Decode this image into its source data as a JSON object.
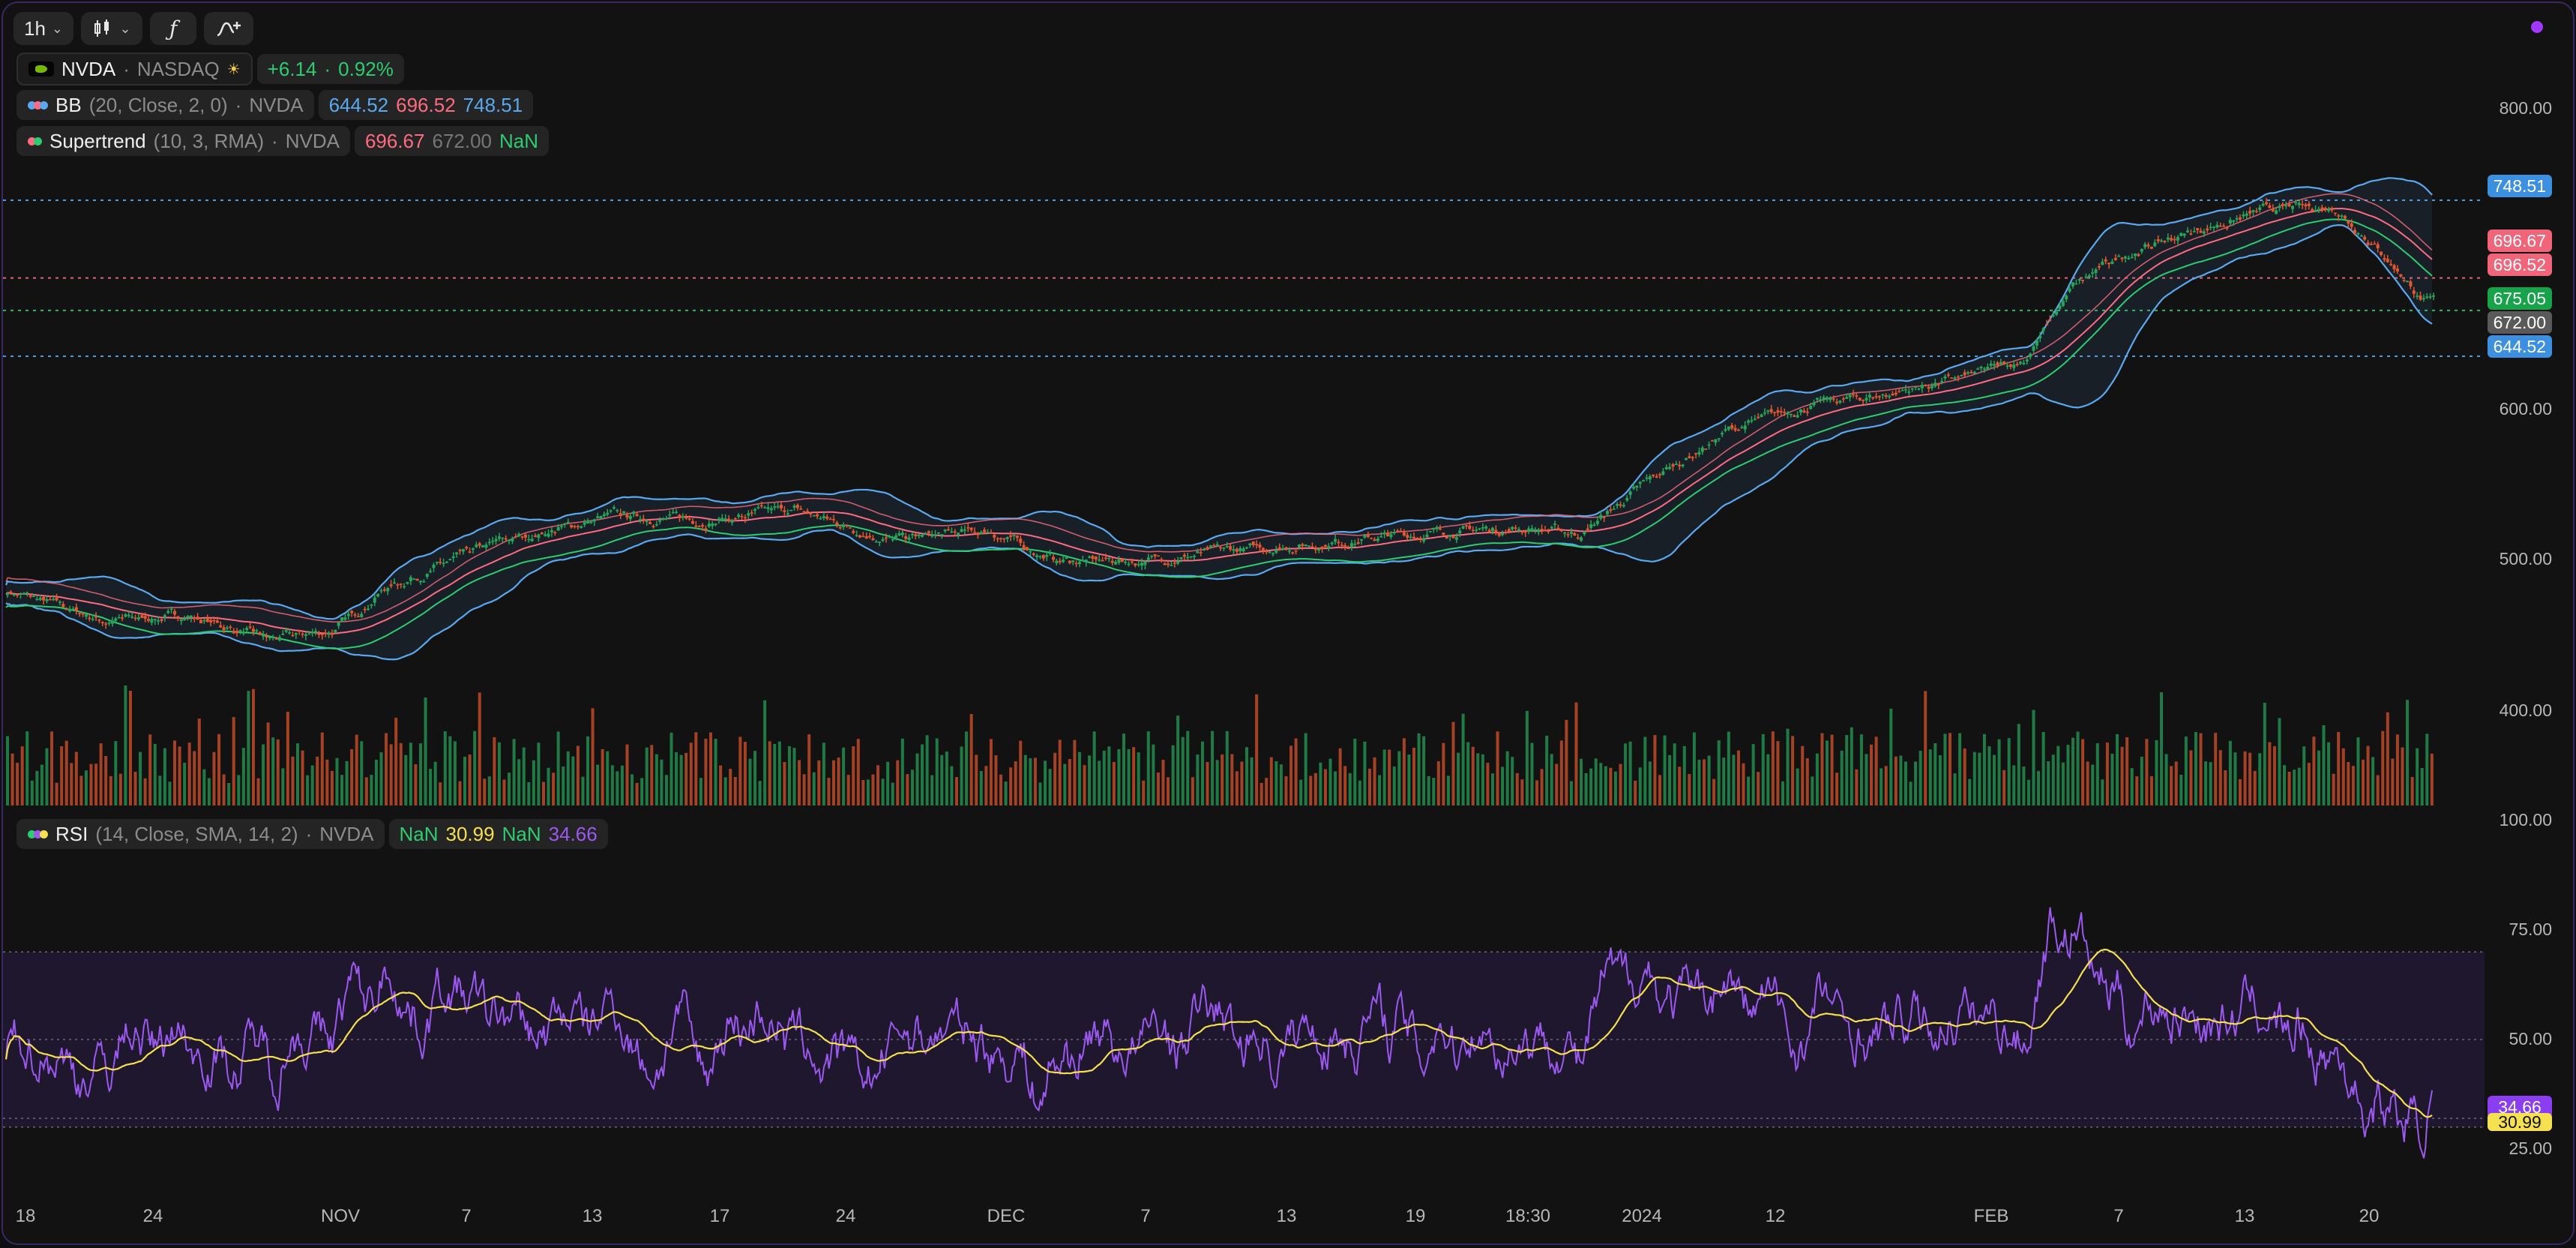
{
  "toolbar": {
    "interval": "1h",
    "buttons": [
      "chart-type",
      "indicators",
      "drawing"
    ]
  },
  "symbol": {
    "name": "NVDA",
    "exchange": "NASDAQ",
    "change": "+6.14",
    "change_pct": "0.92%"
  },
  "bb": {
    "name": "BB",
    "params": "(20, Close, 2, 0)",
    "symbol": "NVDA",
    "lower": "644.52",
    "basis": "696.52",
    "upper": "748.51"
  },
  "supertrend": {
    "name": "Supertrend",
    "params": "(10, 3, RMA)",
    "symbol": "NVDA",
    "v1": "696.67",
    "v2": "672.00",
    "v3": "NaN"
  },
  "rsi": {
    "name": "RSI",
    "params": "(14, Close, SMA, 14, 2)",
    "symbol": "NVDA",
    "v1": "NaN",
    "v2": "30.99",
    "v3": "NaN",
    "v4": "34.66"
  },
  "price_labels": {
    "bb_upper": "748.51",
    "supertrend": "696.67",
    "bb_basis": "696.52",
    "last_price": "675.05",
    "st_down": "672.00",
    "bb_lower": "644.52",
    "rsi_value": "34.66",
    "rsi_ma": "30.99"
  },
  "y_axis_main": [
    "800.00",
    "600.00",
    "500.00",
    "400.00"
  ],
  "y_axis_rsi": [
    "100.00",
    "75.00",
    "50.00",
    "25.00"
  ],
  "x_axis": [
    "18",
    "24",
    "NOV",
    "7",
    "13",
    "17",
    "24",
    "DEC",
    "7",
    "13",
    "19",
    "18:30",
    "2024",
    "12",
    "FEB",
    "7",
    "13",
    "20"
  ],
  "colors": {
    "up": "#26a65b",
    "down": "#e4572e",
    "bb": "#5aa9f0",
    "supertrend_up": "#2ecc71",
    "supertrend_down": "#ff6b81",
    "rsi": "#9b59f0",
    "rsi_ma": "#f5e050",
    "accent": "#a238ff"
  },
  "chart_data": {
    "type": "candlestick",
    "ylim": [
      355,
      860
    ],
    "price_keypoints": [
      [
        0,
        488
      ],
      [
        60,
        468
      ],
      [
        110,
        472
      ],
      [
        160,
        455
      ],
      [
        200,
        462
      ],
      [
        230,
        490
      ],
      [
        300,
        520
      ],
      [
        370,
        538
      ],
      [
        430,
        535
      ],
      [
        480,
        542
      ],
      [
        540,
        522
      ],
      [
        600,
        528
      ],
      [
        640,
        508
      ],
      [
        690,
        508
      ],
      [
        750,
        515
      ],
      [
        820,
        522
      ],
      [
        880,
        528
      ],
      [
        930,
        530
      ],
      [
        960,
        526
      ],
      [
        1000,
        560
      ],
      [
        1050,
        595
      ],
      [
        1100,
        612
      ],
      [
        1140,
        618
      ],
      [
        1200,
        632
      ],
      [
        1230,
        642
      ],
      [
        1260,
        690
      ],
      [
        1290,
        712
      ],
      [
        1340,
        730
      ],
      [
        1380,
        742
      ],
      [
        1420,
        744
      ],
      [
        1440,
        724
      ],
      [
        1460,
        700
      ],
      [
        1475,
        680
      ]
    ],
    "rsi_ylim": [
      0,
      100
    ]
  }
}
